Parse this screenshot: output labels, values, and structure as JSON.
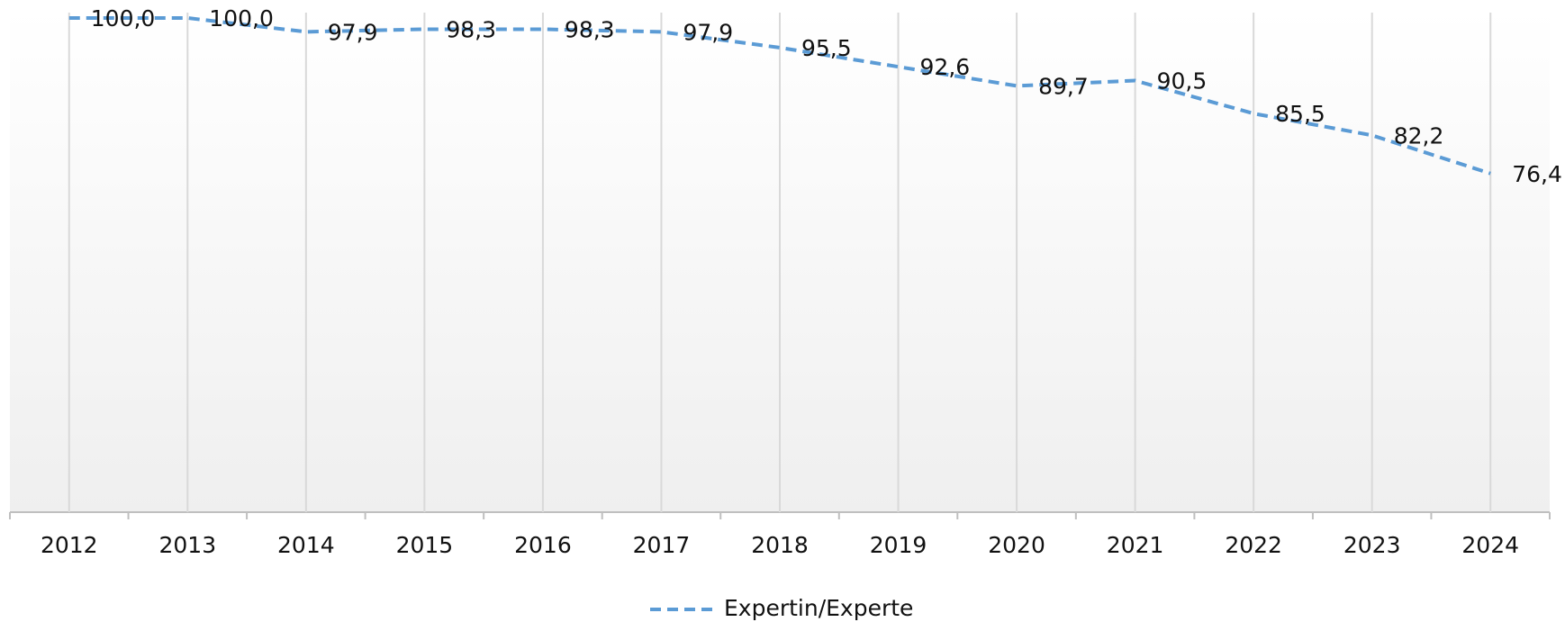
{
  "chart_data": {
    "type": "line",
    "categories": [
      "2012",
      "2013",
      "2014",
      "2015",
      "2016",
      "2017",
      "2018",
      "2019",
      "2020",
      "2021",
      "2022",
      "2023",
      "2024"
    ],
    "series": [
      {
        "name": "Expertin/Experte",
        "color": "#5b9bd5",
        "values": [
          100.0,
          100.0,
          97.9,
          98.3,
          98.3,
          97.9,
          95.5,
          92.6,
          89.7,
          90.5,
          85.5,
          82.2,
          76.4
        ],
        "value_labels": [
          "100,0",
          "100,0",
          "97,9",
          "98,3",
          "98,3",
          "97,9",
          "95,5",
          "92,6",
          "89,7",
          "90,5",
          "85,5",
          "82,2",
          "76,4"
        ]
      }
    ],
    "ylim": [
      25,
      100
    ],
    "grid": true
  }
}
